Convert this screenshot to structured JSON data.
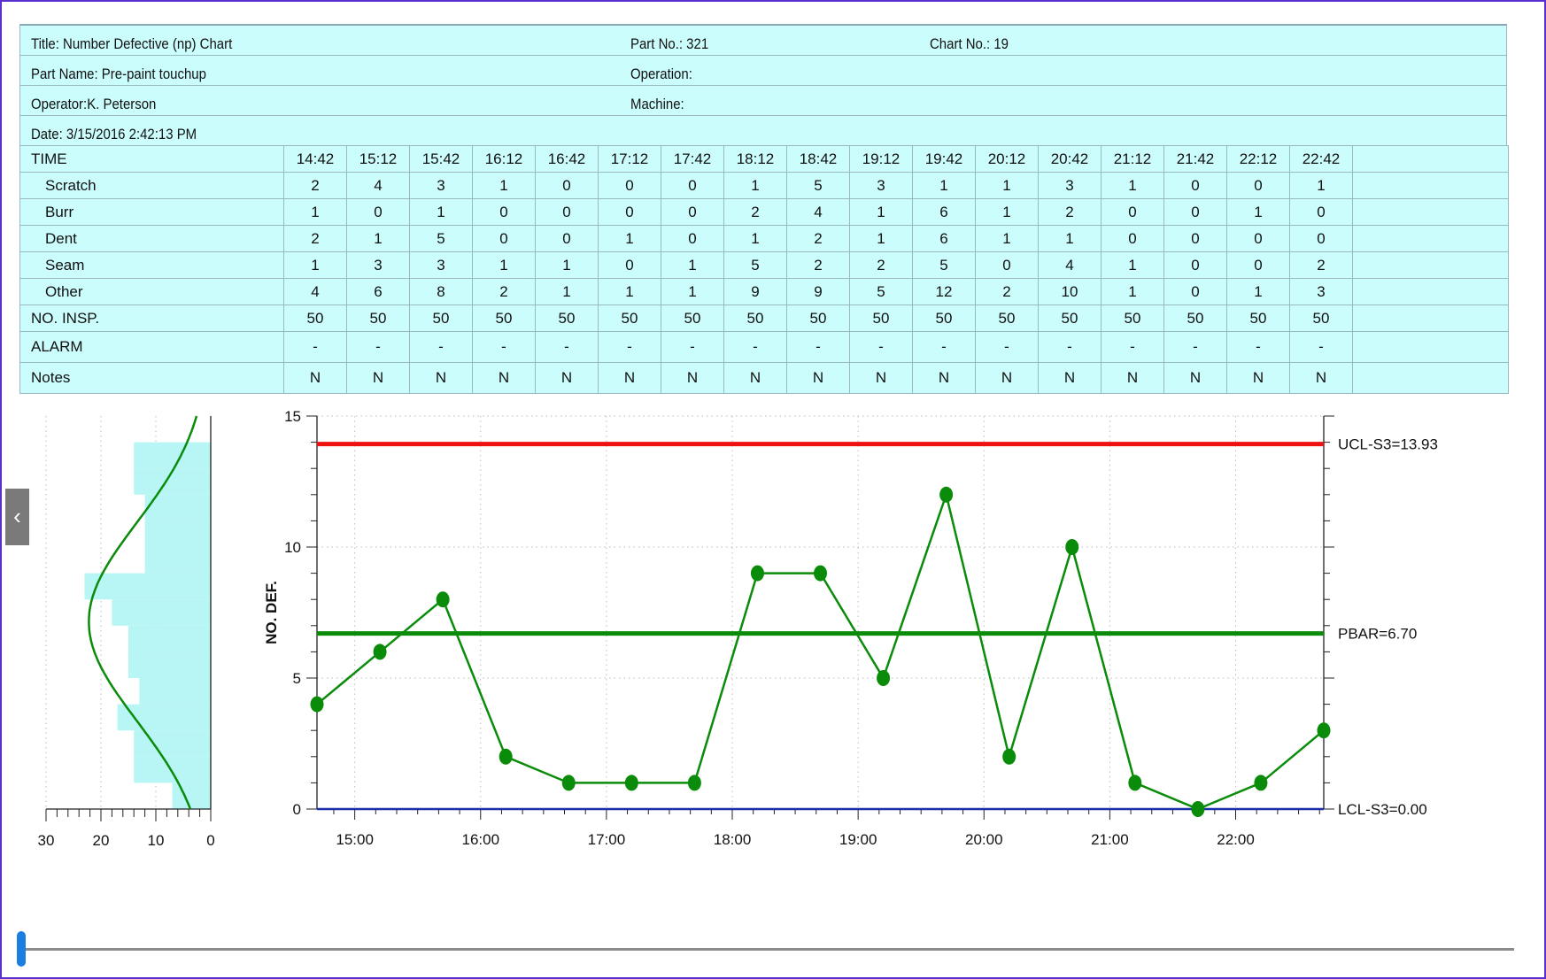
{
  "header": {
    "title": "Title: Number Defective (np) Chart",
    "part_no": "Part No.: 321",
    "chart_no": "Chart No.: 19",
    "part_name": "Part Name: Pre-paint touchup",
    "operation": "Operation:",
    "operator": "Operator:K. Peterson",
    "machine": "Machine:",
    "date": "Date: 3/15/2016 2:42:13 PM"
  },
  "table": {
    "time_label": "TIME",
    "times": [
      "14:42",
      "15:12",
      "15:42",
      "16:12",
      "16:42",
      "17:12",
      "17:42",
      "18:12",
      "18:42",
      "19:12",
      "19:42",
      "20:12",
      "20:42",
      "21:12",
      "21:42",
      "22:12",
      "22:42"
    ],
    "rows": [
      {
        "label": "Scratch",
        "values": [
          "2",
          "4",
          "3",
          "1",
          "0",
          "0",
          "0",
          "1",
          "5",
          "3",
          "1",
          "1",
          "3",
          "1",
          "0",
          "0",
          "1"
        ]
      },
      {
        "label": "Burr",
        "values": [
          "1",
          "0",
          "1",
          "0",
          "0",
          "0",
          "0",
          "2",
          "4",
          "1",
          "6",
          "1",
          "2",
          "0",
          "0",
          "1",
          "0"
        ]
      },
      {
        "label": "Dent",
        "values": [
          "2",
          "1",
          "5",
          "0",
          "0",
          "1",
          "0",
          "1",
          "2",
          "1",
          "6",
          "1",
          "1",
          "0",
          "0",
          "0",
          "0"
        ]
      },
      {
        "label": "Seam",
        "values": [
          "1",
          "3",
          "3",
          "1",
          "1",
          "0",
          "1",
          "5",
          "2",
          "2",
          "5",
          "0",
          "4",
          "1",
          "0",
          "0",
          "2"
        ]
      },
      {
        "label": "Other",
        "values": [
          "4",
          "6",
          "8",
          "2",
          "1",
          "1",
          "1",
          "9",
          "9",
          "5",
          "12",
          "2",
          "10",
          "1",
          "0",
          "1",
          "3"
        ]
      }
    ],
    "insp_label": "NO. INSP.",
    "insp": [
      "50",
      "50",
      "50",
      "50",
      "50",
      "50",
      "50",
      "50",
      "50",
      "50",
      "50",
      "50",
      "50",
      "50",
      "50",
      "50",
      "50"
    ],
    "alarm_label": "ALARM",
    "alarm": [
      "-",
      "-",
      "-",
      "-",
      "-",
      "-",
      "-",
      "-",
      "-",
      "-",
      "-",
      "-",
      "-",
      "-",
      "-",
      "-",
      "-"
    ],
    "notes_label": "Notes",
    "notes": [
      "N",
      "N",
      "N",
      "N",
      "N",
      "N",
      "N",
      "N",
      "N",
      "N",
      "N",
      "N",
      "N",
      "N",
      "N",
      "N",
      "N"
    ]
  },
  "chart_data": [
    {
      "type": "line",
      "ylabel": "NO. DEF.",
      "x": [
        "14:42",
        "15:12",
        "15:42",
        "16:12",
        "16:42",
        "17:12",
        "17:42",
        "18:12",
        "18:42",
        "19:12",
        "19:42",
        "20:12",
        "20:42",
        "21:12",
        "21:42",
        "22:12",
        "22:42"
      ],
      "values": [
        4,
        6,
        8,
        2,
        1,
        1,
        1,
        9,
        9,
        5,
        12,
        2,
        10,
        1,
        0,
        1,
        3
      ],
      "xlim": [
        "14:42",
        "22:42"
      ],
      "ylim": [
        0,
        15
      ],
      "xticks": [
        "15:00",
        "16:00",
        "17:00",
        "18:00",
        "19:00",
        "20:00",
        "21:00",
        "22:00"
      ],
      "yticks": [
        "0",
        "5",
        "10",
        "15"
      ],
      "limits": [
        {
          "label": "UCL-S3=13.93",
          "value": 13.93,
          "color": "#ee1111"
        },
        {
          "label": "PBAR=6.70",
          "value": 6.7,
          "color": "#0a8c0a"
        },
        {
          "label": "LCL-S3=0.00",
          "value": 0.0,
          "color": "#1c2fa8"
        }
      ],
      "series_color": "#0a8c0a",
      "grid": true
    },
    {
      "type": "bar",
      "orientation": "horizontal",
      "xlim": [
        30,
        0
      ],
      "xticks": [
        "30",
        "20",
        "10",
        "0"
      ],
      "bins": [
        [
          0,
          1
        ],
        [
          1,
          2
        ],
        [
          2,
          3
        ],
        [
          3,
          4
        ],
        [
          4,
          5
        ],
        [
          5,
          6
        ],
        [
          6,
          7
        ],
        [
          7,
          8
        ],
        [
          8,
          9
        ],
        [
          9,
          10
        ],
        [
          10,
          11
        ],
        [
          11,
          12
        ],
        [
          12,
          13
        ],
        [
          13,
          14
        ]
      ],
      "counts": [
        7,
        14,
        14,
        17,
        13,
        15,
        15,
        18,
        23,
        12,
        12,
        12,
        14,
        14
      ],
      "bar_color": "#b8f6f6",
      "curve_color": "#0a8c0a"
    }
  ],
  "colors": {
    "panel_bg": "#ccfdfd",
    "frame": "#5a2fd0",
    "accent": "#1a7fe0"
  },
  "ui": {
    "collapse_glyph": "‹"
  }
}
